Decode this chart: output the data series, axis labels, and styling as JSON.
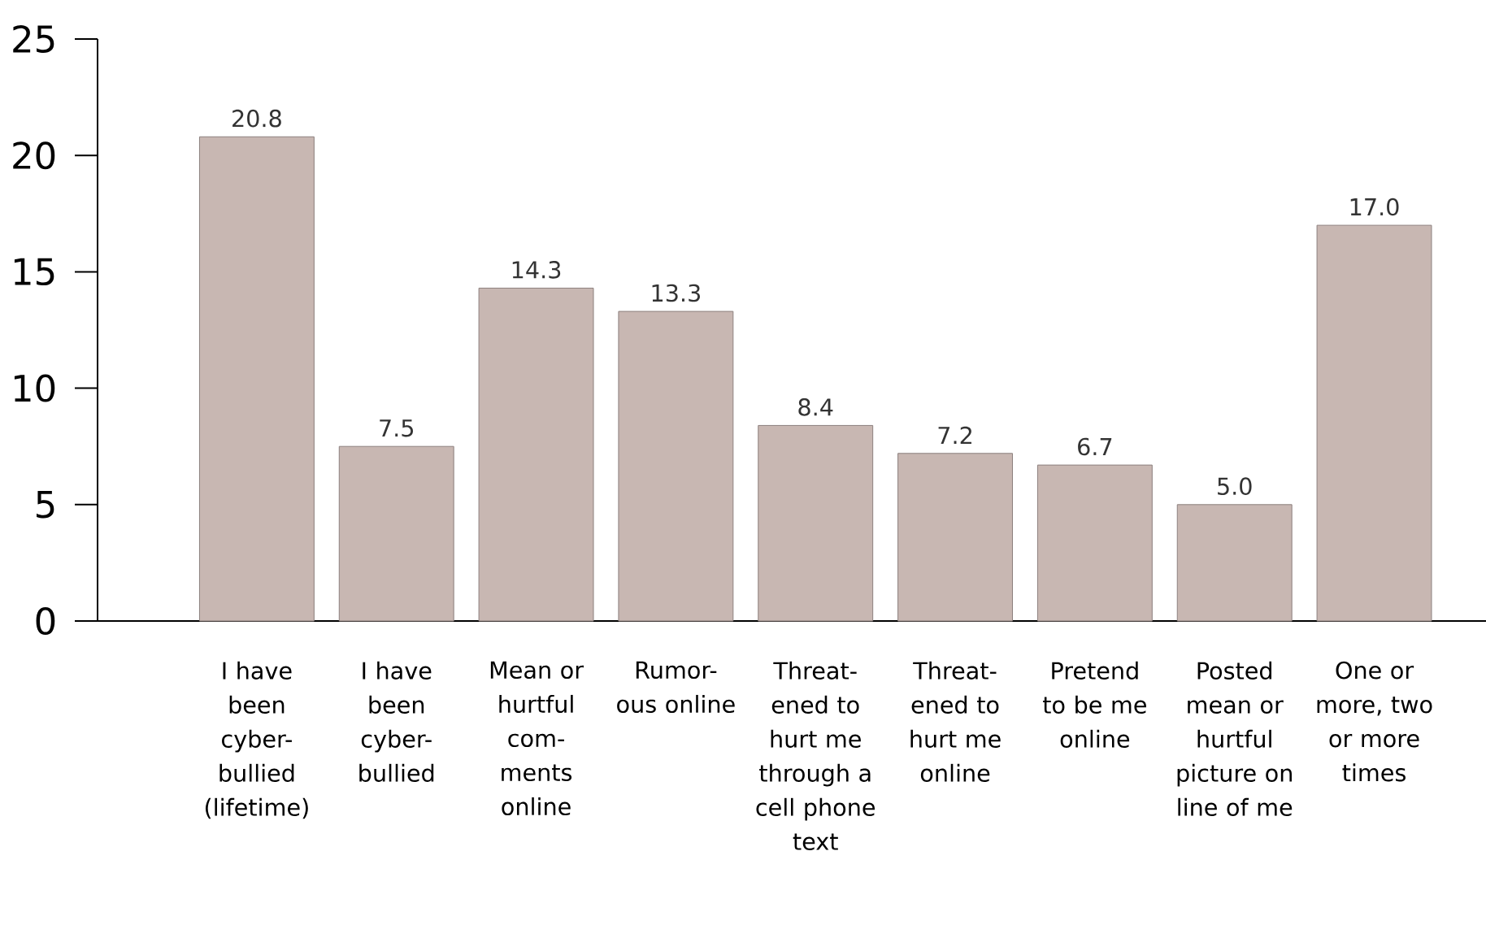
{
  "chart_data": {
    "type": "bar",
    "categories": [
      "I have been cyber-bullied (lifetime)",
      "I have been cyber-bullied",
      "Mean or hurtful com-ments online",
      "Rumor-ous online",
      "Threat-ened to hurt me through a cell phone text",
      "Threat-ened to hurt me online",
      "Pretend to be me online",
      "Posted mean or hurtful picture on line of me",
      "One or more, two or more times"
    ],
    "values": [
      20.8,
      7.5,
      14.3,
      13.3,
      8.4,
      7.2,
      6.7,
      5.0,
      17.0
    ],
    "value_labels": [
      "20.8",
      "7.5",
      "14.3",
      "13.3",
      "8.4",
      "7.2",
      "6.7",
      "5.0",
      "17.0"
    ],
    "color": "#c8b7b2",
    "ylim": [
      0,
      25
    ],
    "yticks": [
      0,
      5,
      10,
      15,
      20,
      25
    ]
  }
}
